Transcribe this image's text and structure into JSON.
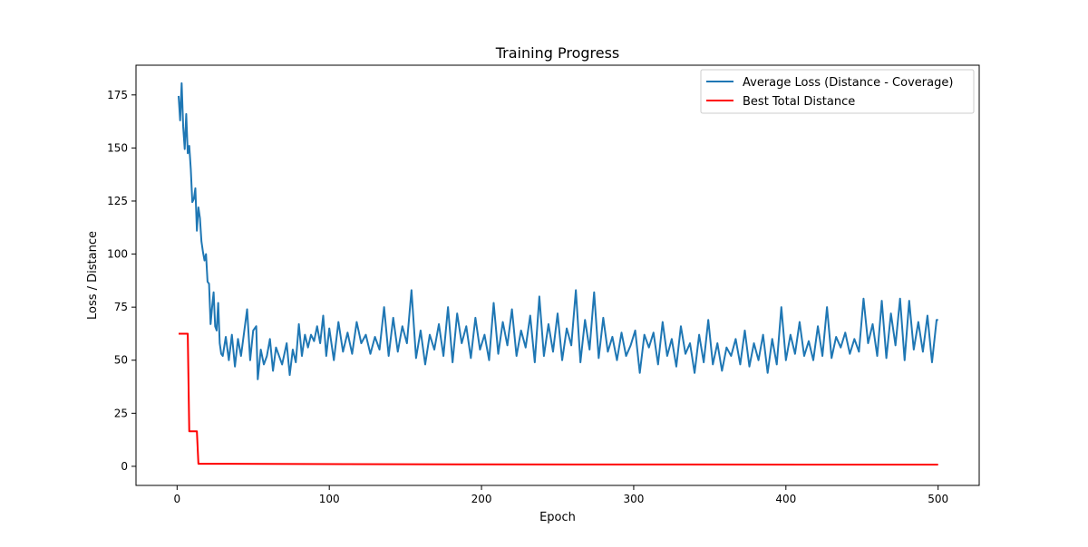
{
  "chart_data": {
    "type": "line",
    "title": "Training Progress",
    "xlabel": "Epoch",
    "ylabel": "Loss / Distance",
    "xlim": [
      -27,
      527
    ],
    "ylim": [
      -9,
      189
    ],
    "x_ticks": [
      0,
      100,
      200,
      300,
      400,
      500
    ],
    "y_ticks": [
      0,
      25,
      50,
      75,
      100,
      125,
      150,
      175
    ],
    "grid": false,
    "legend_position": "top-right",
    "series": [
      {
        "name": "Average Loss (Distance - Coverage)",
        "color": "#1f77b4",
        "points": [
          [
            1,
            174.5
          ],
          [
            2,
            163
          ],
          [
            3,
            180.5
          ],
          [
            4,
            160
          ],
          [
            5,
            149.5
          ],
          [
            6,
            166
          ],
          [
            7,
            147.5
          ],
          [
            8,
            151
          ],
          [
            9,
            140
          ],
          [
            10,
            124.5
          ],
          [
            11,
            126
          ],
          [
            12,
            131
          ],
          [
            13,
            111
          ],
          [
            14,
            122
          ],
          [
            15,
            117
          ],
          [
            16,
            106
          ],
          [
            17,
            101
          ],
          [
            18,
            97
          ],
          [
            19,
            100
          ],
          [
            20,
            87
          ],
          [
            21,
            86
          ],
          [
            22,
            67
          ],
          [
            23,
            75
          ],
          [
            24,
            82
          ],
          [
            25,
            66
          ],
          [
            26,
            64
          ],
          [
            27,
            77
          ],
          [
            28,
            58
          ],
          [
            29,
            53
          ],
          [
            30,
            52
          ],
          [
            32,
            61
          ],
          [
            34,
            50
          ],
          [
            36,
            62
          ],
          [
            38,
            47
          ],
          [
            40,
            60
          ],
          [
            42,
            52
          ],
          [
            44,
            63
          ],
          [
            46,
            74
          ],
          [
            48,
            50
          ],
          [
            50,
            64
          ],
          [
            52,
            66
          ],
          [
            53,
            41
          ],
          [
            55,
            55
          ],
          [
            57,
            48
          ],
          [
            59,
            52
          ],
          [
            61,
            60
          ],
          [
            63,
            45
          ],
          [
            65,
            56
          ],
          [
            67,
            52
          ],
          [
            69,
            48
          ],
          [
            72,
            58
          ],
          [
            74,
            43
          ],
          [
            76,
            55
          ],
          [
            78,
            49
          ],
          [
            80,
            67
          ],
          [
            82,
            52
          ],
          [
            84,
            62
          ],
          [
            86,
            56
          ],
          [
            88,
            62
          ],
          [
            90,
            59
          ],
          [
            92,
            66
          ],
          [
            94,
            58
          ],
          [
            96,
            71
          ],
          [
            98,
            52
          ],
          [
            100,
            65
          ],
          [
            103,
            50
          ],
          [
            106,
            68
          ],
          [
            109,
            54
          ],
          [
            112,
            63
          ],
          [
            115,
            53
          ],
          [
            118,
            68
          ],
          [
            121,
            58
          ],
          [
            124,
            62
          ],
          [
            127,
            53
          ],
          [
            130,
            61
          ],
          [
            133,
            55
          ],
          [
            136,
            75
          ],
          [
            139,
            52
          ],
          [
            142,
            70
          ],
          [
            145,
            54
          ],
          [
            148,
            66
          ],
          [
            151,
            58
          ],
          [
            154,
            83
          ],
          [
            157,
            51
          ],
          [
            160,
            64
          ],
          [
            163,
            48
          ],
          [
            166,
            62
          ],
          [
            169,
            55
          ],
          [
            172,
            67
          ],
          [
            175,
            52
          ],
          [
            178,
            75
          ],
          [
            181,
            49
          ],
          [
            184,
            72
          ],
          [
            187,
            58
          ],
          [
            190,
            66
          ],
          [
            193,
            51
          ],
          [
            196,
            70
          ],
          [
            199,
            55
          ],
          [
            202,
            62
          ],
          [
            205,
            50
          ],
          [
            208,
            77
          ],
          [
            211,
            53
          ],
          [
            214,
            68
          ],
          [
            217,
            57
          ],
          [
            220,
            74
          ],
          [
            223,
            52
          ],
          [
            226,
            64
          ],
          [
            229,
            56
          ],
          [
            232,
            71
          ],
          [
            235,
            49
          ],
          [
            238,
            80
          ],
          [
            241,
            52
          ],
          [
            244,
            67
          ],
          [
            247,
            54
          ],
          [
            250,
            72
          ],
          [
            253,
            50
          ],
          [
            256,
            65
          ],
          [
            259,
            57
          ],
          [
            262,
            83
          ],
          [
            265,
            49
          ],
          [
            268,
            69
          ],
          [
            271,
            55
          ],
          [
            274,
            82
          ],
          [
            277,
            51
          ],
          [
            280,
            70
          ],
          [
            283,
            54
          ],
          [
            286,
            61
          ],
          [
            289,
            50
          ],
          [
            292,
            63
          ],
          [
            295,
            52
          ],
          [
            298,
            57
          ],
          [
            301,
            64
          ],
          [
            304,
            44
          ],
          [
            307,
            62
          ],
          [
            310,
            56
          ],
          [
            313,
            63
          ],
          [
            316,
            48
          ],
          [
            319,
            68
          ],
          [
            322,
            52
          ],
          [
            325,
            60
          ],
          [
            328,
            47
          ],
          [
            331,
            66
          ],
          [
            334,
            53
          ],
          [
            337,
            58
          ],
          [
            340,
            44
          ],
          [
            343,
            62
          ],
          [
            346,
            49
          ],
          [
            349,
            69
          ],
          [
            352,
            48
          ],
          [
            355,
            58
          ],
          [
            358,
            45
          ],
          [
            361,
            56
          ],
          [
            364,
            52
          ],
          [
            367,
            60
          ],
          [
            370,
            48
          ],
          [
            373,
            64
          ],
          [
            376,
            47
          ],
          [
            379,
            58
          ],
          [
            382,
            50
          ],
          [
            385,
            62
          ],
          [
            388,
            44
          ],
          [
            391,
            60
          ],
          [
            394,
            48
          ],
          [
            397,
            75
          ],
          [
            400,
            50
          ],
          [
            403,
            62
          ],
          [
            406,
            53
          ],
          [
            409,
            68
          ],
          [
            412,
            52
          ],
          [
            415,
            59
          ],
          [
            418,
            50
          ],
          [
            421,
            66
          ],
          [
            424,
            52
          ],
          [
            427,
            75
          ],
          [
            430,
            51
          ],
          [
            433,
            61
          ],
          [
            436,
            56
          ],
          [
            439,
            63
          ],
          [
            442,
            53
          ],
          [
            445,
            60
          ],
          [
            448,
            54
          ],
          [
            451,
            79
          ],
          [
            454,
            58
          ],
          [
            457,
            67
          ],
          [
            460,
            52
          ],
          [
            463,
            78
          ],
          [
            466,
            51
          ],
          [
            469,
            72
          ],
          [
            472,
            57
          ],
          [
            475,
            79
          ],
          [
            478,
            50
          ],
          [
            481,
            78
          ],
          [
            484,
            55
          ],
          [
            487,
            68
          ],
          [
            490,
            54
          ],
          [
            493,
            71
          ],
          [
            496,
            49
          ],
          [
            499,
            69
          ],
          [
            500,
            69
          ]
        ]
      },
      {
        "name": "Best Total Distance",
        "color": "#ff0000",
        "points": [
          [
            1,
            62.5
          ],
          [
            7,
            62.5
          ],
          [
            8,
            16.5
          ],
          [
            13,
            16.5
          ],
          [
            14,
            1.2
          ],
          [
            200,
            0.9
          ],
          [
            500,
            0.8
          ]
        ]
      }
    ]
  }
}
